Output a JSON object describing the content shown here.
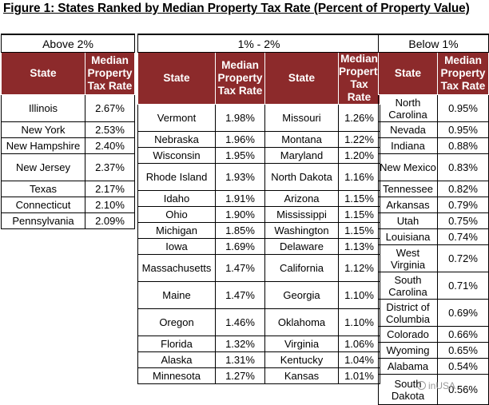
{
  "title": "Figure 1: States Ranked by Median Property Tax Rate (Percent of Property Value)",
  "headers": {
    "state": "State",
    "rate": "Median Property Tax Rate"
  },
  "groups": [
    {
      "title": "Above 2%",
      "columns": [
        [
          {
            "state": "Illinois",
            "rate": "2.67%"
          },
          {
            "state": "New York",
            "rate": "2.53%"
          },
          {
            "state": "New Hampshire",
            "rate": "2.40%"
          },
          {
            "state": "New Jersey",
            "rate": "2.37%"
          },
          {
            "state": "Texas",
            "rate": "2.17%"
          },
          {
            "state": "Connecticut",
            "rate": "2.10%"
          },
          {
            "state": "Pennsylvania",
            "rate": "2.09%"
          }
        ]
      ]
    },
    {
      "title": "1% - 2%",
      "columns": [
        [
          {
            "state": "Vermont",
            "rate": "1.98%"
          },
          {
            "state": "Nebraska",
            "rate": "1.96%"
          },
          {
            "state": "Wisconsin",
            "rate": "1.95%"
          },
          {
            "state": "Rhode Island",
            "rate": "1.93%"
          },
          {
            "state": "Idaho",
            "rate": "1.91%"
          },
          {
            "state": "Ohio",
            "rate": "1.90%"
          },
          {
            "state": "Michigan",
            "rate": "1.85%"
          },
          {
            "state": "Iowa",
            "rate": "1.69%"
          },
          {
            "state": "Massachusetts",
            "rate": "1.47%"
          },
          {
            "state": "Maine",
            "rate": "1.47%"
          },
          {
            "state": "Oregon",
            "rate": "1.46%"
          },
          {
            "state": "Florida",
            "rate": "1.32%"
          },
          {
            "state": "Alaska",
            "rate": "1.31%"
          },
          {
            "state": "Minnesota",
            "rate": "1.27%"
          }
        ],
        [
          {
            "state": "Missouri",
            "rate": "1.26%"
          },
          {
            "state": "Montana",
            "rate": "1.22%"
          },
          {
            "state": "Maryland",
            "rate": "1.20%"
          },
          {
            "state": "North Dakota",
            "rate": "1.16%"
          },
          {
            "state": "Arizona",
            "rate": "1.15%"
          },
          {
            "state": "Mississippi",
            "rate": "1.15%"
          },
          {
            "state": "Washington",
            "rate": "1.15%"
          },
          {
            "state": "Delaware",
            "rate": "1.13%"
          },
          {
            "state": "California",
            "rate": "1.12%"
          },
          {
            "state": "Georgia",
            "rate": "1.10%"
          },
          {
            "state": "Oklahoma",
            "rate": "1.10%"
          },
          {
            "state": "Virginia",
            "rate": "1.06%"
          },
          {
            "state": "Kentucky",
            "rate": "1.04%"
          },
          {
            "state": "Kansas",
            "rate": "1.01%"
          }
        ]
      ]
    },
    {
      "title": "Below 1%",
      "columns": [
        [
          {
            "state": "North Carolina",
            "rate": "0.95%"
          },
          {
            "state": "Nevada",
            "rate": "0.95%"
          },
          {
            "state": "Indiana",
            "rate": "0.88%"
          },
          {
            "state": "New Mexico",
            "rate": "0.83%"
          },
          {
            "state": "Tennessee",
            "rate": "0.82%"
          },
          {
            "state": "Arkansas",
            "rate": "0.79%"
          },
          {
            "state": "Utah",
            "rate": "0.75%"
          },
          {
            "state": "Louisiana",
            "rate": "0.74%"
          },
          {
            "state": "West Virginia",
            "rate": "0.72%"
          },
          {
            "state": "South Carolina",
            "rate": "0.71%"
          },
          {
            "state": "District of Columbia",
            "rate": "0.69%"
          },
          {
            "state": "Colorado",
            "rate": "0.66%"
          },
          {
            "state": "Wyoming",
            "rate": "0.65%"
          },
          {
            "state": "Alabama",
            "rate": "0.54%"
          },
          {
            "state": "South Dakota",
            "rate": "0.56%"
          }
        ]
      ]
    }
  ],
  "watermark": "inUSA",
  "watermark_icon": "circle-logo-icon"
}
